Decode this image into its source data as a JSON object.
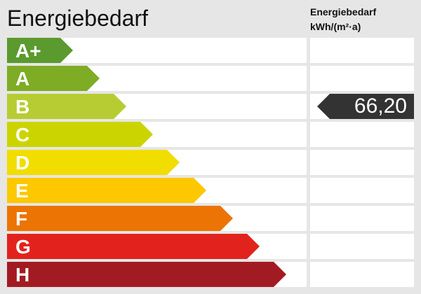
{
  "chart_data": {
    "type": "bar",
    "title": "Energiebedarf",
    "unit_label": [
      "Energiebedarf",
      "kWh/(m²·a)"
    ],
    "categories": [
      "A+",
      "A",
      "B",
      "C",
      "D",
      "E",
      "F",
      "G",
      "H"
    ],
    "colors": [
      "#5b9a2e",
      "#7eac24",
      "#b7cc32",
      "#ccd400",
      "#f2dd00",
      "#fdc800",
      "#ec7404",
      "#e2231d",
      "#a31b22"
    ],
    "value": "66,20",
    "value_class": "B",
    "marker_color": "#333333"
  }
}
